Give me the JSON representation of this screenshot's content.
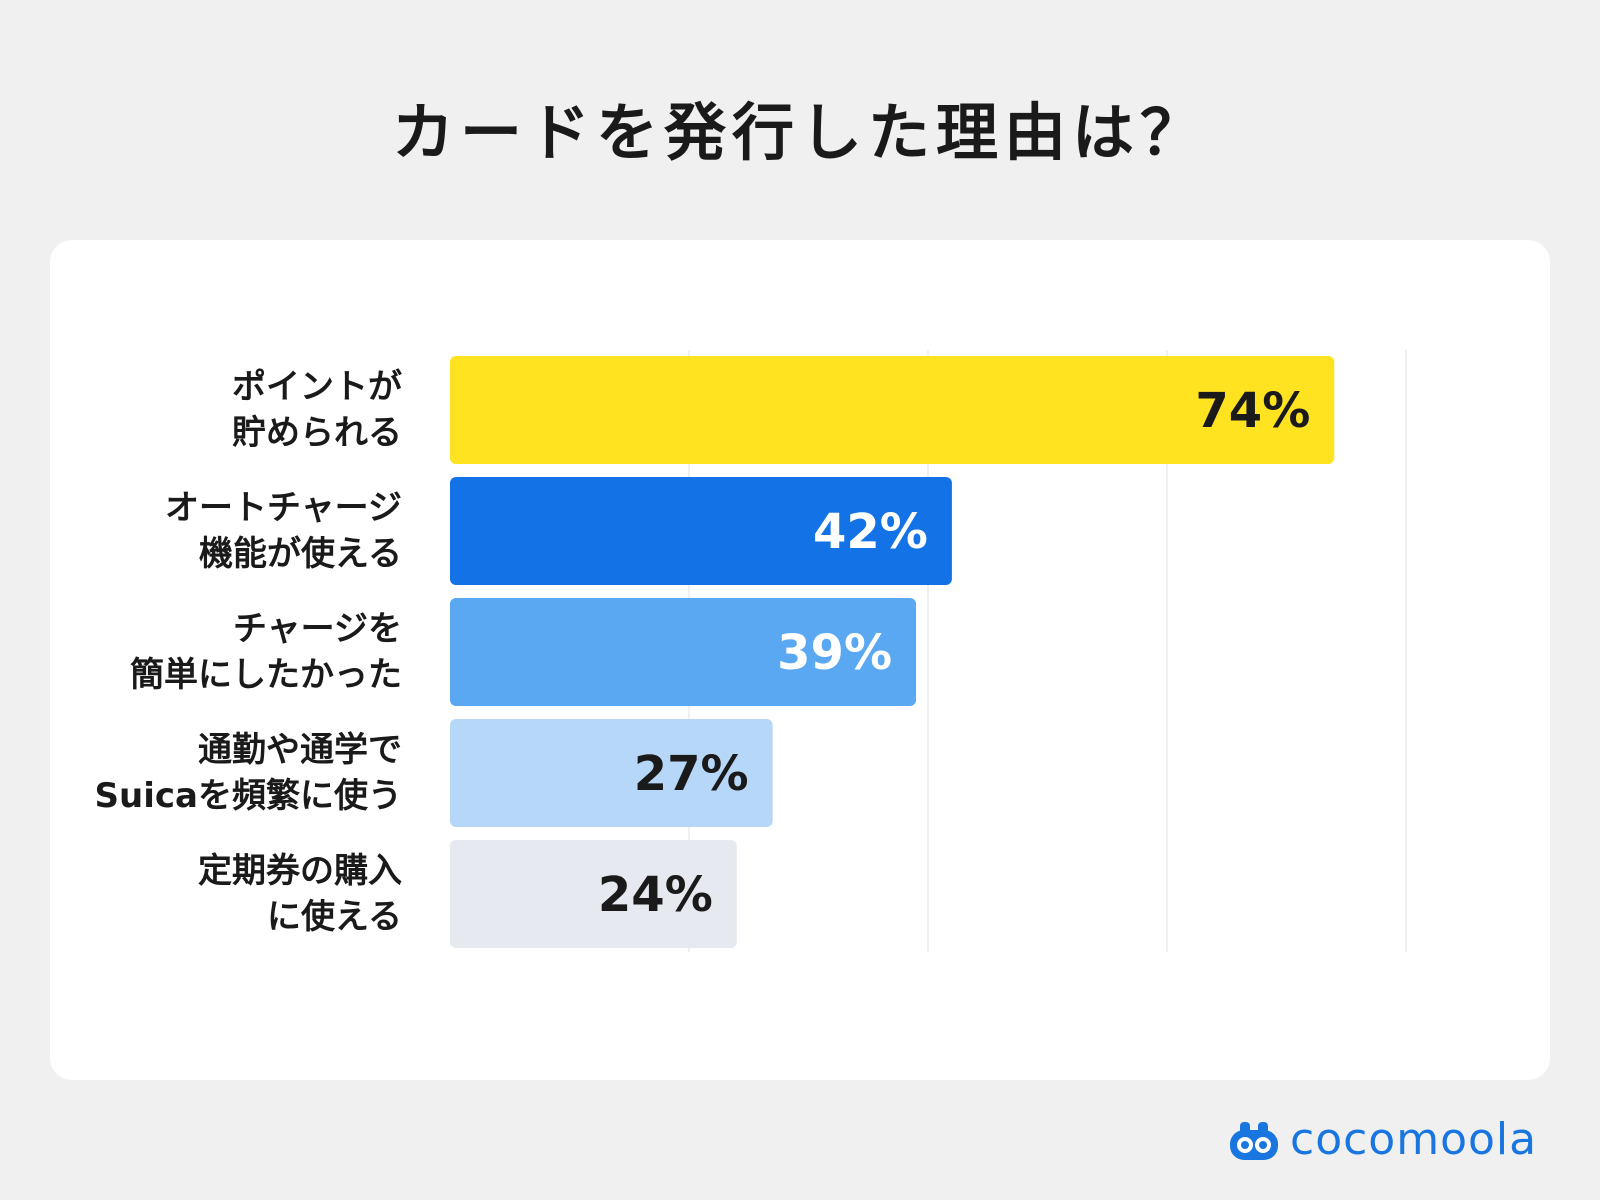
{
  "chart_data": {
    "type": "bar",
    "orientation": "horizontal",
    "title": "カードを発行した理由は？",
    "categories": [
      [
        "ポイントが",
        "貯められる"
      ],
      [
        "オートチャージ",
        "機能が使える"
      ],
      [
        "チャージを",
        "簡単にしたかった"
      ],
      [
        "通勤や通学で",
        "Suicaを頻繁に使う"
      ],
      [
        "定期券の購入",
        "に使える"
      ]
    ],
    "values": [
      74,
      42,
      39,
      27,
      24
    ],
    "value_labels": [
      "74%",
      "42%",
      "39%",
      "27%",
      "24%"
    ],
    "bar_colors": [
      "#ffe321",
      "#1373e6",
      "#5aa8f2",
      "#b7d7f8",
      "#e6e9ef"
    ],
    "label_colors": [
      "#1a1a1a",
      "#ffffff",
      "#ffffff",
      "#1a1a1a",
      "#1a1a1a"
    ],
    "xlim": [
      0,
      80
    ],
    "grid": true,
    "legend": "none"
  },
  "brand": {
    "name": "cocomoola",
    "color": "#1976e0"
  }
}
